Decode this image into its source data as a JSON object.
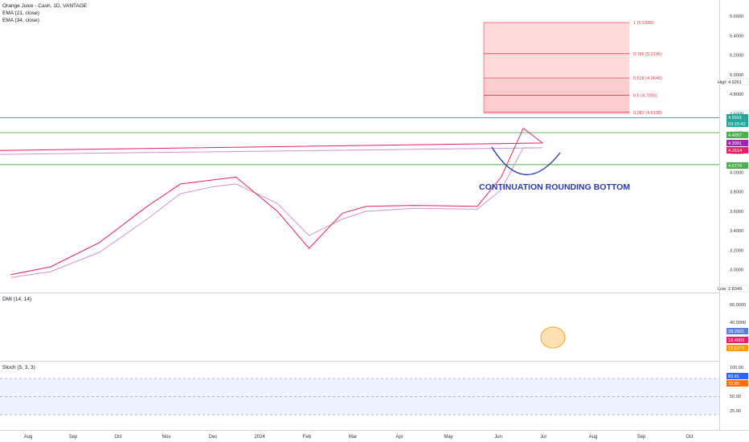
{
  "header": {
    "symbol": "Orange Juice - Cash, 1D, VANTAGE",
    "ind1": "EMA (21, close)",
    "ind2": "EMA (34, close)"
  },
  "annotation": "CONTINUATION ROUNDING BOTTOM",
  "colors": {
    "up": "#26a69a",
    "down": "#ef5350",
    "ema21": "#e91e63",
    "ema34": "#ce93d8",
    "fib": "#f23645",
    "green_line": "#4caf50",
    "dmi_plus": "#5b7fd6",
    "dmi_minus": "#ff9800",
    "adx": "#e91e63",
    "stoch_k": "#2962ff",
    "stoch_d": "#ff6d00"
  },
  "chart_data": [
    {
      "type": "line",
      "title": "Orange Juice - Cash, 1D, VANTAGE",
      "ylim": [
        2.75,
        5.62
      ],
      "price_ticks": [
        "5.6000",
        "5.4000",
        "5.2000",
        "5.0000",
        "4.8000",
        "4.6000",
        "4.4000",
        "4.2000",
        "4.0000",
        "3.8000",
        "3.6000",
        "3.4000",
        "3.2000",
        "3.0000",
        "2.8000"
      ],
      "x_labels": [
        "Aug",
        "Sep",
        "Oct",
        "Nov",
        "Dec",
        "2024",
        "Feb",
        "Mar",
        "Apr",
        "May",
        "Jun",
        "Jul",
        "Aug",
        "Sep",
        "Oct"
      ],
      "price_path": [
        {
          "x": "Jul 21",
          "y": 2.95
        },
        {
          "x": "Aug 1",
          "y": 3.05
        },
        {
          "x": "Aug 15",
          "y": 3.08
        },
        {
          "x": "Sep 1",
          "y": 3.25
        },
        {
          "x": "Sep 20",
          "y": 3.55
        },
        {
          "x": "Oct 5",
          "y": 3.85
        },
        {
          "x": "Oct 20",
          "y": 3.95
        },
        {
          "x": "Nov 1",
          "y": 4.08
        },
        {
          "x": "Nov 5",
          "y": 3.65
        },
        {
          "x": "Nov 15",
          "y": 3.95
        },
        {
          "x": "Nov 22",
          "y": 4.08
        },
        {
          "x": "Nov 28",
          "y": 4.15
        },
        {
          "x": "Dec 5",
          "y": 3.95
        },
        {
          "x": "Dec 15",
          "y": 3.8
        },
        {
          "x": "Dec 30",
          "y": 3.55
        },
        {
          "x": "Jan 10",
          "y": 3.3
        },
        {
          "x": "Jan 20",
          "y": 3.0
        },
        {
          "x": "Jan 28",
          "y": 3.3
        },
        {
          "x": "Feb 3",
          "y": 3.6
        },
        {
          "x": "Feb 12",
          "y": 3.85
        },
        {
          "x": "Feb 20",
          "y": 3.6
        },
        {
          "x": "Mar 1",
          "y": 3.75
        },
        {
          "x": "Mar 15",
          "y": 3.62
        },
        {
          "x": "Apr 1",
          "y": 3.68
        },
        {
          "x": "Apr 15",
          "y": 3.7
        },
        {
          "x": "May 1",
          "y": 3.62
        },
        {
          "x": "May 10",
          "y": 3.68
        },
        {
          "x": "May 18",
          "y": 4.1
        },
        {
          "x": "May 25",
          "y": 4.35
        },
        {
          "x": "Jun 1",
          "y": 4.6
        },
        {
          "x": "Jun 5",
          "y": 4.8
        },
        {
          "x": "Jun 8",
          "y": 4.5
        },
        {
          "x": "Jun 12",
          "y": 4.3
        },
        {
          "x": "Jun 18",
          "y": 4.15
        },
        {
          "x": "Jun 25",
          "y": 4.2
        },
        {
          "x": "Jul 1",
          "y": 4.25
        },
        {
          "x": "Jul 8",
          "y": 4.35
        },
        {
          "x": "Jul 11",
          "y": 4.55
        }
      ],
      "ema21_path": [
        {
          "x": "Jul 21",
          "y": 2.95
        },
        {
          "x": "Aug 15",
          "y": 3.03
        },
        {
          "x": "Sep 15",
          "y": 3.28
        },
        {
          "x": "Oct 15",
          "y": 3.65
        },
        {
          "x": "Nov 5",
          "y": 3.88
        },
        {
          "x": "Nov 25",
          "y": 3.92
        },
        {
          "x": "Dec 10",
          "y": 3.95
        },
        {
          "x": "Jan 5",
          "y": 3.6
        },
        {
          "x": "Jan 25",
          "y": 3.22
        },
        {
          "x": "Feb 15",
          "y": 3.58
        },
        {
          "x": "Mar 1",
          "y": 3.65
        },
        {
          "x": "Apr 1",
          "y": 3.66
        },
        {
          "x": "May 10",
          "y": 3.65
        },
        {
          "x": "May 25",
          "y": 3.95
        },
        {
          "x": "Jun 8",
          "y": 4.45
        },
        {
          "x": "Jun 20",
          "y": 4.3
        },
        {
          "x": "Jul 1",
          "y": 4.22
        },
        {
          "x": "Jul 11",
          "y": 4.3
        }
      ],
      "ema34_path": [
        {
          "x": "Jul 21",
          "y": 2.92
        },
        {
          "x": "Aug 15",
          "y": 2.98
        },
        {
          "x": "Sep 15",
          "y": 3.18
        },
        {
          "x": "Oct 15",
          "y": 3.52
        },
        {
          "x": "Nov 5",
          "y": 3.78
        },
        {
          "x": "Nov 25",
          "y": 3.85
        },
        {
          "x": "Dec 10",
          "y": 3.88
        },
        {
          "x": "Jan 5",
          "y": 3.68
        },
        {
          "x": "Jan 25",
          "y": 3.35
        },
        {
          "x": "Feb 15",
          "y": 3.52
        },
        {
          "x": "Mar 1",
          "y": 3.6
        },
        {
          "x": "Apr 1",
          "y": 3.63
        },
        {
          "x": "May 10",
          "y": 3.62
        },
        {
          "x": "May 25",
          "y": 3.82
        },
        {
          "x": "Jun 8",
          "y": 4.25
        },
        {
          "x": "Jun 20",
          "y": 4.25
        },
        {
          "x": "Jul 1",
          "y": 4.18
        },
        {
          "x": "Jul 11",
          "y": 4.26
        }
      ],
      "fib_levels": [
        {
          "label": "1 (5.5329)",
          "value": 5.5329
        },
        {
          "label": "0.786 (5.2146)",
          "value": 5.2146
        },
        {
          "label": "0.618 (4.9648)",
          "value": 4.9648
        },
        {
          "label": "0.5 (4.7893)",
          "value": 4.7893
        },
        {
          "label": "0.382 (4.6138)",
          "value": 4.6138
        }
      ],
      "horizontal_lines": [
        {
          "value": 4.5591,
          "color": "#26a69a"
        },
        {
          "value": 4.4057,
          "color": "#4caf50"
        },
        {
          "value": 4.0774,
          "color": "#4caf50"
        }
      ],
      "price_badges": [
        {
          "label": "4.5591",
          "sub": "03:10:42",
          "value": 4.5591,
          "color": "#26a69a"
        },
        {
          "label": "4.4057",
          "value": 4.4057,
          "color": "#4caf50"
        },
        {
          "label": "4.3091",
          "value": 4.3091,
          "color": "#9c27b0"
        },
        {
          "label": "4.2614",
          "value": 4.2614,
          "color": "#e91e63"
        },
        {
          "label": "4.0774",
          "value": 4.0774,
          "color": "#4caf50"
        }
      ],
      "high": {
        "label": "High",
        "value": "4.9261"
      },
      "low": {
        "label": "Low",
        "value": "2.8349"
      }
    },
    {
      "type": "line",
      "title": "DMI (14, 14)",
      "ylim": [
        0,
        70
      ],
      "ticks": [
        "60.0000",
        "40.0000"
      ],
      "badges": [
        {
          "label": "28.2921",
          "value": 28.29,
          "color": "#5b7fd6"
        },
        {
          "label": "18.4003",
          "value": 18.4,
          "color": "#e91e63"
        },
        {
          "label": "12.5373",
          "value": 12.54,
          "color": "#ff9800"
        }
      ]
    },
    {
      "type": "line",
      "title": "Stoch (5, 3, 3)",
      "ylim": [
        0,
        100
      ],
      "ticks": [
        "100.00",
        "75.00",
        "50.00",
        "25.00"
      ],
      "bands": [
        20,
        50,
        80
      ],
      "badges": [
        {
          "label": "83.61",
          "value": 83.61,
          "color": "#2962ff"
        },
        {
          "label": "72.89",
          "value": 72.89,
          "color": "#ff6d00"
        }
      ]
    }
  ]
}
